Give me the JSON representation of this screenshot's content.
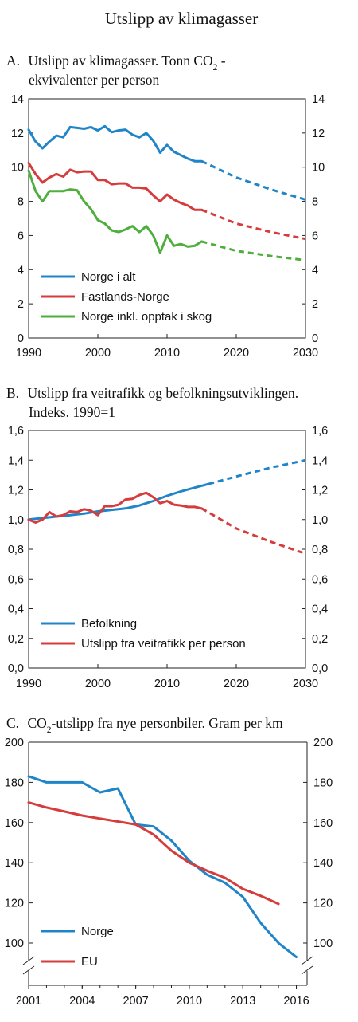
{
  "figure_title": "Utslipp av klimagasser",
  "chart_data": [
    {
      "type": "line",
      "panel_letter": "A.",
      "title_line1_pre": "Utslipp av klimagasser. Tonn CO",
      "title_line1_sub": "2",
      "title_line1_post": " -",
      "title_line2": "ekvivalenter per person",
      "xlim": [
        1990,
        2030
      ],
      "ylim": [
        0,
        14
      ],
      "x_ticks": [
        "1990",
        "2000",
        "2010",
        "2020",
        "2030"
      ],
      "y_ticks": [
        "0",
        "2",
        "4",
        "6",
        "8",
        "10",
        "12",
        "14"
      ],
      "legend": "lower-left",
      "series": [
        {
          "name": "Norge i alt",
          "color": "#1f85c8",
          "x": [
            1990,
            1991,
            1992,
            1993,
            1994,
            1995,
            1996,
            1997,
            1998,
            1999,
            2000,
            2001,
            2002,
            2003,
            2004,
            2005,
            2006,
            2007,
            2008,
            2009,
            2010,
            2011,
            2012,
            2013,
            2014,
            2015
          ],
          "y": [
            12.2,
            11.5,
            11.1,
            11.5,
            11.85,
            11.75,
            12.35,
            12.3,
            12.25,
            12.35,
            12.15,
            12.4,
            12.05,
            12.15,
            12.2,
            11.9,
            11.75,
            12.0,
            11.55,
            10.85,
            11.3,
            10.9,
            10.7,
            10.5,
            10.35,
            10.35
          ],
          "projection_x": [
            2015,
            2020,
            2025,
            2030
          ],
          "projection_y": [
            10.35,
            9.4,
            8.7,
            8.1
          ]
        },
        {
          "name": "Fastlands-Norge",
          "color": "#d63c3c",
          "x": [
            1990,
            1991,
            1992,
            1993,
            1994,
            1995,
            1996,
            1997,
            1998,
            1999,
            2000,
            2001,
            2002,
            2003,
            2004,
            2005,
            2006,
            2007,
            2008,
            2009,
            2010,
            2011,
            2012,
            2013,
            2014,
            2015
          ],
          "y": [
            10.25,
            9.6,
            9.1,
            9.4,
            9.6,
            9.45,
            9.85,
            9.7,
            9.75,
            9.75,
            9.25,
            9.25,
            9.0,
            9.05,
            9.05,
            8.8,
            8.8,
            8.75,
            8.35,
            8.0,
            8.4,
            8.1,
            7.9,
            7.75,
            7.5,
            7.5
          ],
          "projection_x": [
            2015,
            2020,
            2025,
            2030
          ],
          "projection_y": [
            7.5,
            6.7,
            6.2,
            5.8
          ]
        },
        {
          "name": "Norge inkl. opptak i skog",
          "color": "#4fae3d",
          "x": [
            1990,
            1991,
            1992,
            1993,
            1994,
            1995,
            1996,
            1997,
            1998,
            1999,
            2000,
            2001,
            2002,
            2003,
            2004,
            2005,
            2006,
            2007,
            2008,
            2009,
            2010,
            2011,
            2012,
            2013,
            2014,
            2015
          ],
          "y": [
            9.8,
            8.6,
            8.0,
            8.6,
            8.6,
            8.6,
            8.7,
            8.65,
            8.0,
            7.55,
            6.9,
            6.7,
            6.3,
            6.2,
            6.35,
            6.55,
            6.2,
            6.55,
            6.0,
            5.0,
            6.0,
            5.4,
            5.5,
            5.35,
            5.4,
            5.65
          ],
          "projection_x": [
            2015,
            2020,
            2025,
            2030
          ],
          "projection_y": [
            5.65,
            5.1,
            4.8,
            4.55
          ]
        }
      ]
    },
    {
      "type": "line",
      "panel_letter": "B.",
      "title_line1": "Utslipp fra veitrafikk og befolkningsutviklingen.",
      "title_line2": "Indeks. 1990=1",
      "xlim": [
        1990,
        2030
      ],
      "ylim": [
        0,
        1.6
      ],
      "x_ticks": [
        "1990",
        "2000",
        "2010",
        "2020",
        "2030"
      ],
      "y_ticks": [
        "0,0",
        "0,2",
        "0,4",
        "0,6",
        "0,8",
        "1,0",
        "1,2",
        "1,4",
        "1,6"
      ],
      "legend": "lower-left",
      "series": [
        {
          "name": "Befolkning",
          "color": "#1f85c8",
          "x": [
            1990,
            1992,
            1994,
            1996,
            1998,
            2000,
            2002,
            2004,
            2006,
            2008,
            2010,
            2012,
            2014,
            2016
          ],
          "y": [
            1.0,
            1.01,
            1.02,
            1.03,
            1.04,
            1.055,
            1.065,
            1.075,
            1.095,
            1.125,
            1.16,
            1.19,
            1.215,
            1.24
          ],
          "projection_x": [
            2016,
            2020,
            2025,
            2030
          ],
          "projection_y": [
            1.24,
            1.29,
            1.35,
            1.4
          ]
        },
        {
          "name": "Utslipp fra veitrafikk per person",
          "color": "#d63c3c",
          "x": [
            1990,
            1991,
            1992,
            1993,
            1994,
            1995,
            1996,
            1997,
            1998,
            1999,
            2000,
            2001,
            2002,
            2003,
            2004,
            2005,
            2006,
            2007,
            2008,
            2009,
            2010,
            2011,
            2012,
            2013,
            2014,
            2015
          ],
          "y": [
            1.0,
            0.98,
            1.0,
            1.05,
            1.02,
            1.03,
            1.055,
            1.05,
            1.07,
            1.06,
            1.03,
            1.09,
            1.09,
            1.1,
            1.135,
            1.14,
            1.165,
            1.18,
            1.15,
            1.11,
            1.125,
            1.1,
            1.095,
            1.085,
            1.085,
            1.075
          ],
          "projection_x": [
            2015,
            2020,
            2025,
            2030
          ],
          "projection_y": [
            1.075,
            0.94,
            0.85,
            0.77
          ]
        }
      ]
    },
    {
      "type": "line",
      "panel_letter": "C.",
      "title_pre": "CO",
      "title_sub": "2",
      "title_post": "-utslipp fra nye personbiler. Gram per km",
      "xlim": [
        2001,
        2016.6
      ],
      "ylim": [
        90,
        200
      ],
      "axis_break": true,
      "x_ticks": [
        "2001",
        "2004",
        "2007",
        "2010",
        "2013",
        "2016"
      ],
      "y_ticks": [
        "100",
        "120",
        "140",
        "160",
        "180",
        "200"
      ],
      "legend": "lower-left",
      "series": [
        {
          "name": "Norge",
          "color": "#1f85c8",
          "x": [
            2001,
            2002,
            2003,
            2004,
            2005,
            2006,
            2007,
            2008,
            2009,
            2010,
            2011,
            2012,
            2013,
            2014,
            2015,
            2016
          ],
          "y": [
            183,
            180,
            180,
            180,
            175,
            177,
            159,
            158,
            151,
            141,
            134,
            130,
            123,
            110,
            100,
            93
          ]
        },
        {
          "name": "EU",
          "color": "#d63c3c",
          "x": [
            2001,
            2002,
            2003,
            2004,
            2005,
            2006,
            2007,
            2008,
            2009,
            2010,
            2011,
            2012,
            2013,
            2014,
            2015
          ],
          "y": [
            170,
            167.5,
            165.5,
            163.5,
            162,
            160.5,
            159,
            154,
            146,
            140,
            136,
            132.5,
            127,
            123.5,
            119.5
          ]
        }
      ]
    }
  ]
}
